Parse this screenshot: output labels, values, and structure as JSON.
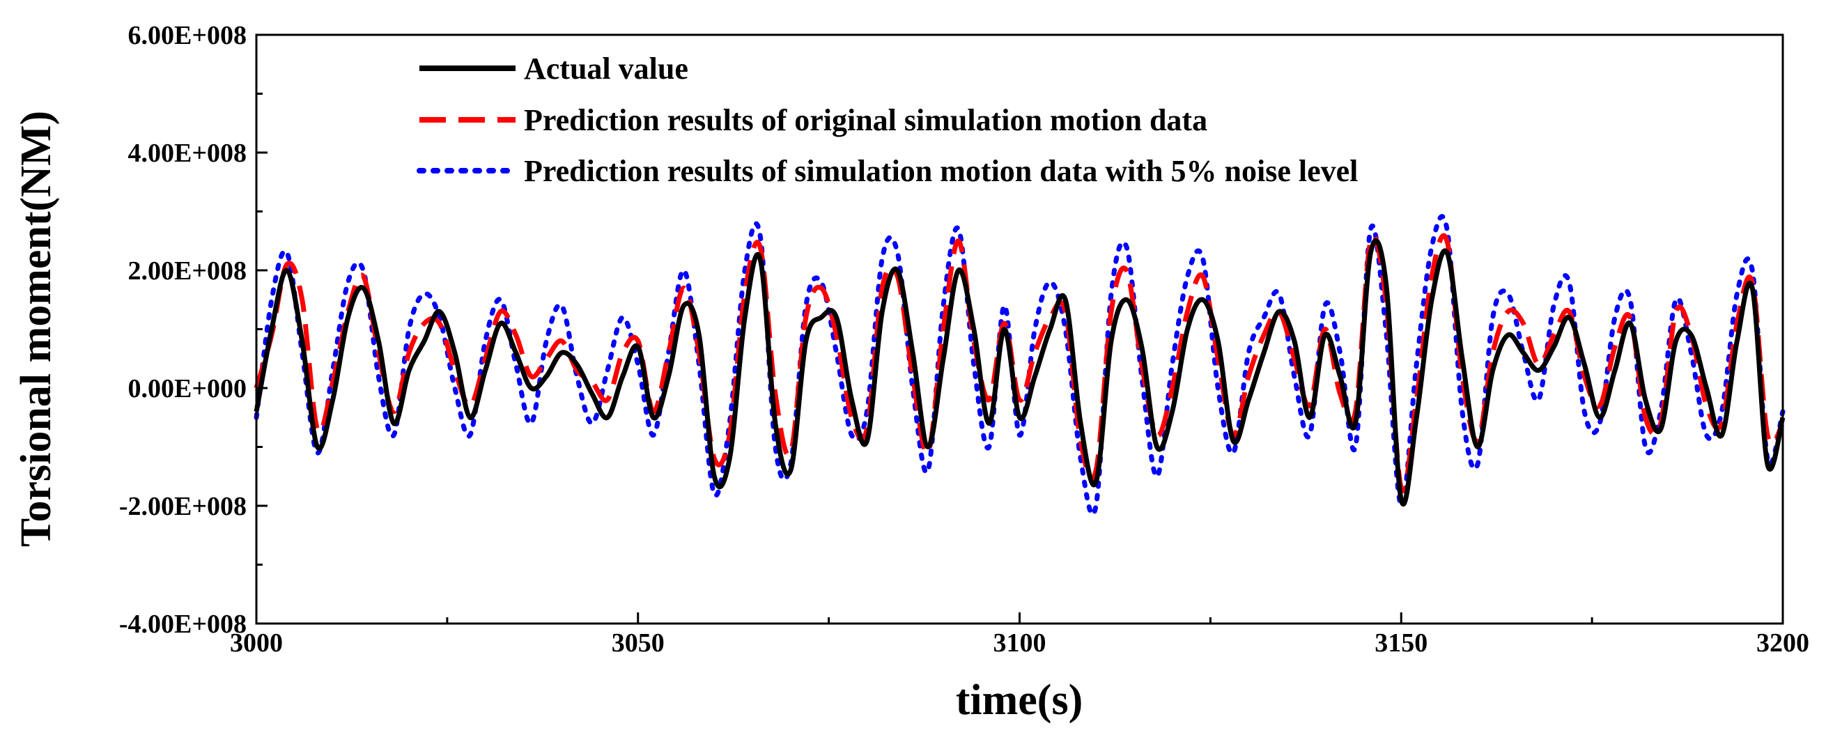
{
  "chart_data": {
    "type": "line",
    "title": "",
    "xlabel": "time(s)",
    "ylabel": "Torsional moment(NM)",
    "xlim": [
      3000,
      3200
    ],
    "ylim": [
      -400000000,
      600000000
    ],
    "x_ticks": [
      3000,
      3050,
      3100,
      3150,
      3200
    ],
    "x_tick_labels": [
      "3000",
      "3050",
      "3100",
      "3150",
      "3200"
    ],
    "y_ticks": [
      -400000000,
      -200000000,
      0,
      200000000,
      400000000,
      600000000
    ],
    "y_tick_labels": [
      "-4.00E+008",
      "-2.00E+008",
      "0.00E+000",
      "2.00E+008",
      "4.00E+008",
      "6.00E+008"
    ],
    "grid": false,
    "legend_position": "top-left",
    "x": [
      3000,
      3002,
      3004,
      3006,
      3008,
      3010,
      3012,
      3014,
      3016,
      3018,
      3020,
      3022,
      3024,
      3026,
      3028,
      3030,
      3032,
      3034,
      3036,
      3038,
      3040,
      3042,
      3044,
      3046,
      3048,
      3050,
      3052,
      3054,
      3056,
      3058,
      3060,
      3062,
      3064,
      3066,
      3068,
      3070,
      3072,
      3074,
      3076,
      3078,
      3080,
      3082,
      3084,
      3086,
      3088,
      3090,
      3092,
      3094,
      3096,
      3098,
      3100,
      3102,
      3104,
      3106,
      3108,
      3110,
      3112,
      3114,
      3116,
      3118,
      3120,
      3122,
      3124,
      3126,
      3128,
      3130,
      3132,
      3134,
      3136,
      3138,
      3140,
      3142,
      3144,
      3146,
      3148,
      3150,
      3152,
      3154,
      3156,
      3158,
      3160,
      3162,
      3164,
      3166,
      3168,
      3170,
      3172,
      3174,
      3176,
      3178,
      3180,
      3182,
      3184,
      3186,
      3188,
      3190,
      3192,
      3194,
      3196,
      3198,
      3200
    ],
    "series": [
      {
        "name": "Actual value",
        "color": "#000000",
        "style": "solid",
        "values": [
          -40000000,
          100000000,
          200000000,
          80000000,
          -100000000,
          -20000000,
          120000000,
          170000000,
          80000000,
          -60000000,
          30000000,
          80000000,
          130000000,
          60000000,
          -50000000,
          30000000,
          110000000,
          60000000,
          0,
          20000000,
          60000000,
          40000000,
          -10000000,
          -50000000,
          20000000,
          70000000,
          -50000000,
          20000000,
          140000000,
          90000000,
          -150000000,
          -120000000,
          120000000,
          220000000,
          -60000000,
          -140000000,
          80000000,
          120000000,
          120000000,
          -20000000,
          -90000000,
          130000000,
          200000000,
          60000000,
          -100000000,
          50000000,
          200000000,
          100000000,
          -60000000,
          100000000,
          -50000000,
          20000000,
          100000000,
          150000000,
          -60000000,
          -160000000,
          80000000,
          150000000,
          70000000,
          -100000000,
          -40000000,
          100000000,
          150000000,
          80000000,
          -90000000,
          -20000000,
          60000000,
          130000000,
          80000000,
          -50000000,
          90000000,
          20000000,
          -60000000,
          230000000,
          180000000,
          -190000000,
          -50000000,
          150000000,
          230000000,
          50000000,
          -100000000,
          30000000,
          90000000,
          60000000,
          30000000,
          70000000,
          120000000,
          40000000,
          -50000000,
          30000000,
          110000000,
          -20000000,
          -70000000,
          80000000,
          90000000,
          0,
          -80000000,
          80000000,
          170000000,
          -130000000,
          -50000000
        ]
      },
      {
        "name": "Prediction results of original simulation motion data",
        "color": "#ff0000",
        "style": "dashed",
        "values": [
          0,
          90000000,
          210000000,
          150000000,
          -70000000,
          10000000,
          130000000,
          190000000,
          60000000,
          -40000000,
          60000000,
          110000000,
          110000000,
          30000000,
          -30000000,
          50000000,
          130000000,
          90000000,
          20000000,
          50000000,
          80000000,
          30000000,
          10000000,
          -20000000,
          60000000,
          80000000,
          -40000000,
          60000000,
          170000000,
          60000000,
          -120000000,
          -80000000,
          160000000,
          240000000,
          -10000000,
          -110000000,
          120000000,
          170000000,
          90000000,
          -50000000,
          -70000000,
          170000000,
          190000000,
          20000000,
          -110000000,
          100000000,
          250000000,
          80000000,
          -20000000,
          110000000,
          -20000000,
          60000000,
          120000000,
          130000000,
          -90000000,
          -140000000,
          130000000,
          200000000,
          40000000,
          -80000000,
          0,
          130000000,
          190000000,
          50000000,
          -80000000,
          20000000,
          90000000,
          130000000,
          50000000,
          -30000000,
          100000000,
          -10000000,
          -40000000,
          250000000,
          150000000,
          -170000000,
          -20000000,
          190000000,
          250000000,
          20000000,
          -90000000,
          60000000,
          130000000,
          110000000,
          40000000,
          90000000,
          130000000,
          20000000,
          -30000000,
          70000000,
          120000000,
          -50000000,
          -60000000,
          130000000,
          90000000,
          -30000000,
          -60000000,
          110000000,
          180000000,
          -80000000,
          -60000000
        ]
      },
      {
        "name": "Prediction results of simulation motion data with 5% noise level",
        "color": "#0000ff",
        "style": "dotted",
        "values": [
          -50000000,
          150000000,
          230000000,
          60000000,
          -110000000,
          30000000,
          180000000,
          200000000,
          20000000,
          -80000000,
          100000000,
          160000000,
          120000000,
          0,
          -80000000,
          80000000,
          150000000,
          40000000,
          -60000000,
          80000000,
          140000000,
          20000000,
          -60000000,
          30000000,
          120000000,
          40000000,
          -80000000,
          60000000,
          200000000,
          40000000,
          -180000000,
          -60000000,
          200000000,
          260000000,
          -100000000,
          -130000000,
          140000000,
          180000000,
          60000000,
          -80000000,
          -40000000,
          220000000,
          230000000,
          0,
          -140000000,
          140000000,
          270000000,
          40000000,
          -100000000,
          140000000,
          -80000000,
          100000000,
          180000000,
          100000000,
          -120000000,
          -200000000,
          160000000,
          240000000,
          20000000,
          -150000000,
          40000000,
          190000000,
          220000000,
          0,
          -110000000,
          60000000,
          120000000,
          160000000,
          20000000,
          -80000000,
          140000000,
          60000000,
          -100000000,
          270000000,
          100000000,
          -200000000,
          40000000,
          240000000,
          270000000,
          -40000000,
          -130000000,
          120000000,
          160000000,
          60000000,
          -20000000,
          140000000,
          180000000,
          -40000000,
          -60000000,
          120000000,
          150000000,
          -100000000,
          -40000000,
          150000000,
          60000000,
          -80000000,
          -40000000,
          160000000,
          200000000,
          -120000000,
          -40000000
        ]
      }
    ]
  }
}
